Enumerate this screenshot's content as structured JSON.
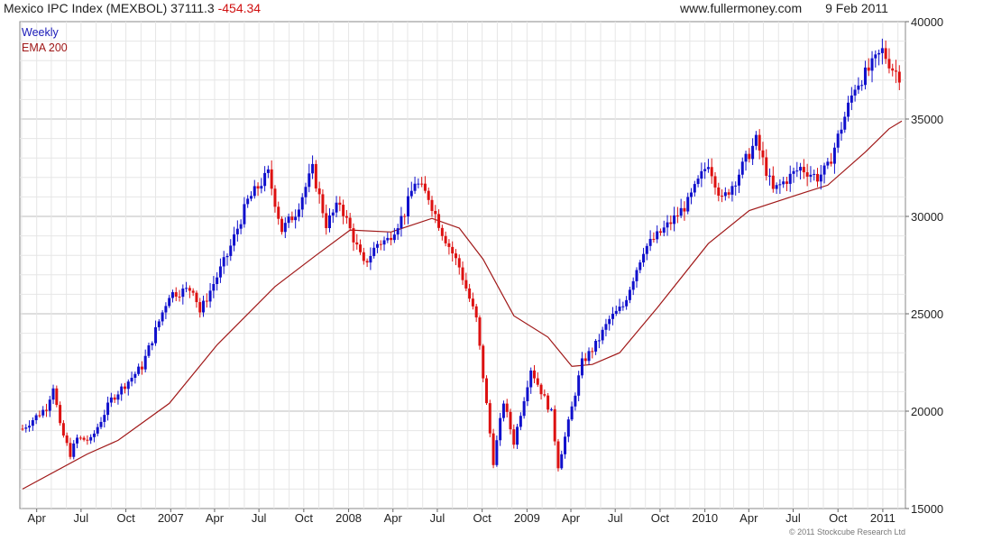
{
  "header": {
    "symbol": "Mexico IPC Index (MEXBOL) 37111.3",
    "change": "-454.34",
    "site": "www.fullermoney.com",
    "date": "9 Feb 2011"
  },
  "legend": {
    "weekly": "Weekly",
    "ema": "EMA 200"
  },
  "credit": "© 2011 Stockcube Research Ltd",
  "colors": {
    "up": "#1010cc",
    "down": "#dd1111",
    "ema": "#a01818",
    "grid": "#e6e6e6",
    "major_grid": "#bdbdbd",
    "axis": "#666666"
  },
  "chart_data": {
    "type": "candlestick",
    "title": "Mexico IPC Index (MEXBOL) 37111.3 -454.34",
    "frequency": "Weekly",
    "x_range": [
      "2006-03-03",
      "2011-02-09"
    ],
    "ylim": [
      15000,
      40000
    ],
    "y_ticks": [
      15000,
      20000,
      25000,
      30000,
      35000,
      40000
    ],
    "x_ticks": [
      {
        "label": "Apr",
        "date": "2006-04-01"
      },
      {
        "label": "Jul",
        "date": "2006-07-01"
      },
      {
        "label": "Oct",
        "date": "2006-10-01"
      },
      {
        "label": "2007",
        "date": "2007-01-01"
      },
      {
        "label": "Apr",
        "date": "2007-04-01"
      },
      {
        "label": "Jul",
        "date": "2007-07-01"
      },
      {
        "label": "Oct",
        "date": "2007-10-01"
      },
      {
        "label": "2008",
        "date": "2008-01-01"
      },
      {
        "label": "Apr",
        "date": "2008-04-01"
      },
      {
        "label": "Jul",
        "date": "2008-07-01"
      },
      {
        "label": "Oct",
        "date": "2008-10-01"
      },
      {
        "label": "2009",
        "date": "2009-01-01"
      },
      {
        "label": "Apr",
        "date": "2009-04-01"
      },
      {
        "label": "Jul",
        "date": "2009-07-01"
      },
      {
        "label": "Oct",
        "date": "2009-10-01"
      },
      {
        "label": "2010",
        "date": "2010-01-01"
      },
      {
        "label": "Apr",
        "date": "2010-04-01"
      },
      {
        "label": "Jul",
        "date": "2010-07-01"
      },
      {
        "label": "Oct",
        "date": "2010-10-01"
      },
      {
        "label": "2011",
        "date": "2011-01-01"
      }
    ],
    "series": [
      {
        "name": "Weekly",
        "path": [
          [
            "2006-03-03",
            19100
          ],
          [
            "2006-04-21",
            20200
          ],
          [
            "2006-05-05",
            21300
          ],
          [
            "2006-05-19",
            19200
          ],
          [
            "2006-06-09",
            17800
          ],
          [
            "2006-06-23",
            18600
          ],
          [
            "2006-07-21",
            18500
          ],
          [
            "2006-09-01",
            20600
          ],
          [
            "2006-11-03",
            22300
          ],
          [
            "2006-12-29",
            26000
          ],
          [
            "2007-02-16",
            26300
          ],
          [
            "2007-03-02",
            25100
          ],
          [
            "2007-04-27",
            28000
          ],
          [
            "2007-06-08",
            30800
          ],
          [
            "2007-07-20",
            32200
          ],
          [
            "2007-08-17",
            29300
          ],
          [
            "2007-09-14",
            30200
          ],
          [
            "2007-10-19",
            32400
          ],
          [
            "2007-11-16",
            29600
          ],
          [
            "2007-12-14",
            30700
          ],
          [
            "2008-02-01",
            27500
          ],
          [
            "2008-02-29",
            28600
          ],
          [
            "2008-03-21",
            28800
          ],
          [
            "2008-04-25",
            30200
          ],
          [
            "2008-05-16",
            31800
          ],
          [
            "2008-06-13",
            31000
          ],
          [
            "2008-07-11",
            29200
          ],
          [
            "2008-08-15",
            27400
          ],
          [
            "2008-09-19",
            24700
          ],
          [
            "2008-10-24",
            17400
          ],
          [
            "2008-11-14",
            20500
          ],
          [
            "2008-12-05",
            18400
          ],
          [
            "2009-01-09",
            22200
          ],
          [
            "2009-01-23",
            21400
          ],
          [
            "2009-02-20",
            19900
          ],
          [
            "2009-03-06",
            17200
          ],
          [
            "2009-03-27",
            19400
          ],
          [
            "2009-04-24",
            22500
          ],
          [
            "2009-05-22",
            23400
          ],
          [
            "2009-06-19",
            24700
          ],
          [
            "2009-07-17",
            25400
          ],
          [
            "2009-08-28",
            28300
          ],
          [
            "2009-10-23",
            29700
          ],
          [
            "2009-11-27",
            30700
          ],
          [
            "2010-01-08",
            32800
          ],
          [
            "2010-02-05",
            30800
          ],
          [
            "2010-03-05",
            31900
          ],
          [
            "2010-04-16",
            33900
          ],
          [
            "2010-05-21",
            31300
          ],
          [
            "2010-06-18",
            31900
          ],
          [
            "2010-07-16",
            32500
          ],
          [
            "2010-08-20",
            32000
          ],
          [
            "2010-09-10",
            32500
          ],
          [
            "2010-10-08",
            34600
          ],
          [
            "2010-11-05",
            36700
          ],
          [
            "2010-12-03",
            37500
          ],
          [
            "2010-12-31",
            38500
          ],
          [
            "2011-01-21",
            37600
          ],
          [
            "2011-02-09",
            37111
          ]
        ]
      },
      {
        "name": "EMA 200",
        "path": [
          [
            "2006-03-03",
            16000
          ],
          [
            "2006-07-14",
            17800
          ],
          [
            "2006-09-15",
            18500
          ],
          [
            "2006-12-29",
            20400
          ],
          [
            "2007-04-06",
            23400
          ],
          [
            "2007-08-03",
            26400
          ],
          [
            "2007-10-26",
            28000
          ],
          [
            "2008-01-04",
            29300
          ],
          [
            "2008-03-28",
            29200
          ],
          [
            "2008-06-20",
            29900
          ],
          [
            "2008-08-15",
            29400
          ],
          [
            "2008-10-03",
            27800
          ],
          [
            "2008-12-05",
            24900
          ],
          [
            "2009-02-13",
            23800
          ],
          [
            "2009-04-03",
            22300
          ],
          [
            "2009-05-15",
            22400
          ],
          [
            "2009-07-10",
            23000
          ],
          [
            "2009-09-25",
            25300
          ],
          [
            "2010-01-08",
            28600
          ],
          [
            "2010-04-02",
            30300
          ],
          [
            "2010-07-09",
            31100
          ],
          [
            "2010-09-10",
            31600
          ],
          [
            "2010-11-26",
            33300
          ],
          [
            "2011-01-14",
            34500
          ],
          [
            "2011-02-09",
            34900
          ]
        ]
      }
    ]
  }
}
